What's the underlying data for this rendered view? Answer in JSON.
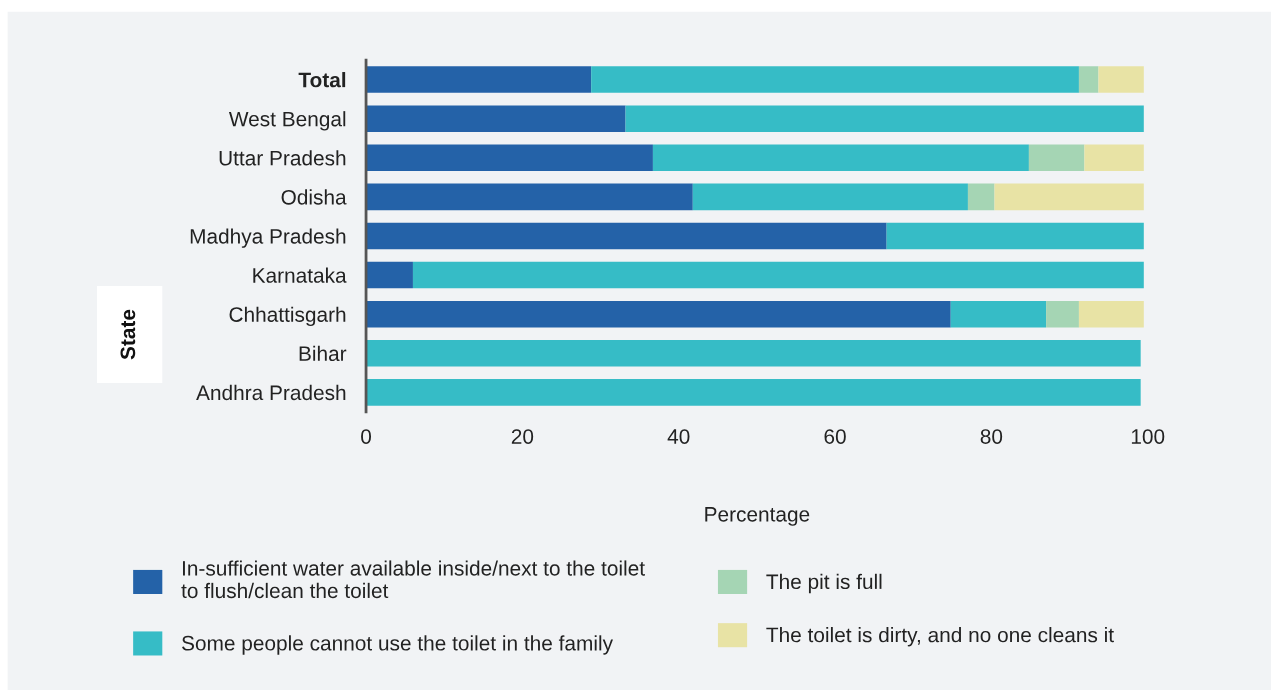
{
  "chart_data": {
    "type": "bar",
    "orientation": "horizontal",
    "stacked": true,
    "xlabel": "Percentage",
    "ylabel": "State",
    "categories": [
      "Total",
      "West Bengal",
      "Uttar Pradesh",
      "Odisha",
      "Madhya Pradesh",
      "Karnataka",
      "Chhattisgarh",
      "Bihar",
      "Andhra Pradesh"
    ],
    "series": [
      {
        "name": "In-sufficient water available inside/next to the toilet to flush/clean the toilet",
        "color": "#2462a8",
        "values": [
          28.8,
          33.2,
          36.7,
          41.8,
          66.6,
          6.0,
          74.8,
          null,
          null
        ]
      },
      {
        "name": "Some people cannot use the toilet in the family",
        "color": "#36bcc6",
        "values": [
          62.4,
          66.3,
          48.1,
          35.2,
          32.9,
          93.5,
          12.2,
          99.1,
          99.1
        ]
      },
      {
        "name": "The pit is full",
        "color": "#a5d5b4",
        "values": [
          2.5,
          null,
          7.1,
          3.4,
          null,
          null,
          4.2,
          null,
          null
        ]
      },
      {
        "name": "The toilet is dirty, and no one cleans it",
        "color": "#e8e3a5",
        "values": [
          5.8,
          null,
          7.6,
          19.1,
          null,
          null,
          8.3,
          null,
          null
        ]
      }
    ],
    "xlim": [
      0,
      100
    ],
    "xticks": [
      0,
      20,
      40,
      60,
      80,
      100
    ],
    "grid": false,
    "legend": "bottom"
  }
}
